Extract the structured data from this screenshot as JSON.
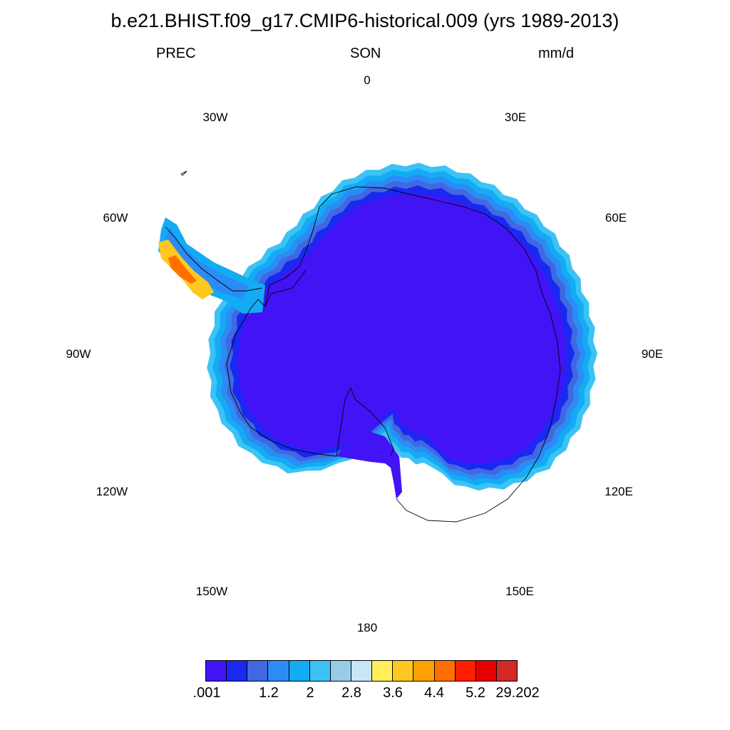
{
  "title": "b.e21.BHIST.f09_g17.CMIP6-historical.009 (yrs 1989-2013)",
  "left_label": "PREC",
  "center_label": "SON",
  "right_label": "mm/d",
  "longitude_labels": {
    "lon_0": "0",
    "lon_30e": "30E",
    "lon_60e": "60E",
    "lon_90e": "90E",
    "lon_120e": "120E",
    "lon_150e": "150E",
    "lon_180": "180",
    "lon_150w": "150W",
    "lon_120w": "120W",
    "lon_90w": "90W",
    "lon_60w": "60W",
    "lon_30w": "30W"
  },
  "colorbar": {
    "colors": [
      "#4214f5",
      "#1a28f2",
      "#4168e0",
      "#2b8cf5",
      "#13acf4",
      "#3cc3f5",
      "#98cdea",
      "#c8e6f8",
      "#fff05a",
      "#ffc820",
      "#ffa000",
      "#ff6e00",
      "#ff1e00",
      "#e60000",
      "#d22828"
    ],
    "labels": [
      ".001",
      "1.2",
      "2",
      "2.8",
      "3.6",
      "4.4",
      "5.2",
      "29.202"
    ]
  },
  "map": {
    "projection": "south polar stereographic",
    "field": "precipitation rate",
    "colors": {
      "interior": "#4214f5",
      "band1": "#1a28f2",
      "band2": "#4168e0",
      "band3": "#2b8cf5",
      "band4": "#13acf4",
      "band5": "#3cc3f5",
      "peninsula_high": "#ffc820",
      "peninsula_max": "#ff6e00",
      "coast_line": "#000000"
    }
  }
}
